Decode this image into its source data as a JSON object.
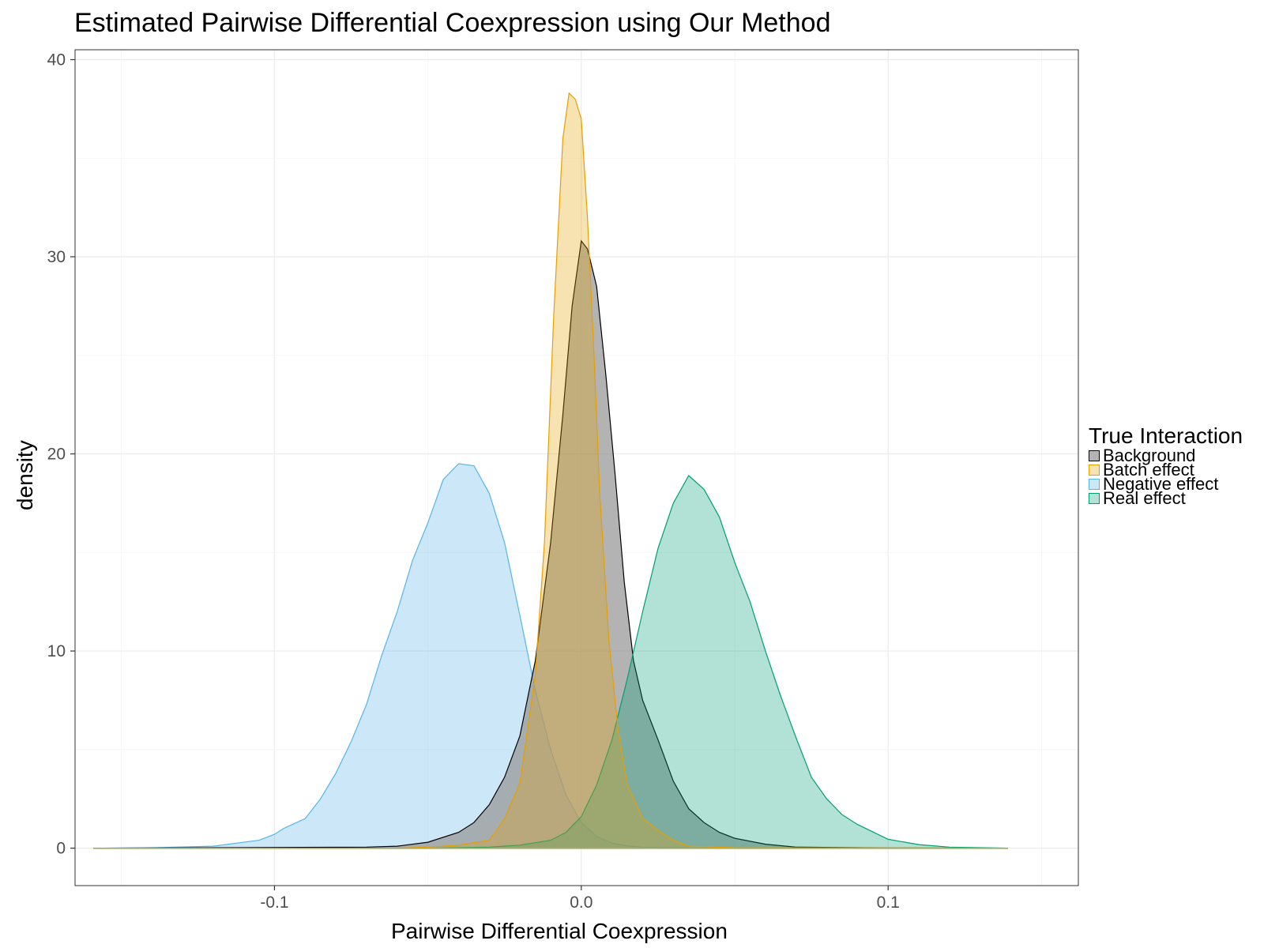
{
  "chart_data": {
    "type": "area",
    "title": "Estimated Pairwise Differential Coexpression using Our Method",
    "xlabel": "Pairwise Differential Coexpression",
    "ylabel": "density",
    "xlim": [
      -0.165,
      0.162
    ],
    "ylim": [
      -1.9,
      40.5
    ],
    "x_ticks": [
      -0.1,
      0.0,
      0.1
    ],
    "x_tick_labels": [
      "-0.1",
      "0.0",
      "0.1"
    ],
    "y_ticks": [
      0,
      10,
      20,
      30,
      40
    ],
    "y_tick_labels": [
      "0",
      "10",
      "20",
      "30",
      "40"
    ],
    "grid": true,
    "legend": {
      "title": "True Interaction",
      "placement": "right",
      "entries": [
        "Background",
        "Batch effect",
        "Negative effect",
        "Real effect"
      ]
    },
    "series": [
      {
        "name": "Negative effect",
        "fill": "#56B4E9",
        "stroke": "#56B4E9",
        "x": [
          -0.159,
          -0.14,
          -0.12,
          -0.105,
          -0.1,
          -0.097,
          -0.09,
          -0.085,
          -0.08,
          -0.075,
          -0.07,
          -0.065,
          -0.06,
          -0.055,
          -0.05,
          -0.045,
          -0.04,
          -0.035,
          -0.03,
          -0.025,
          -0.02,
          -0.015,
          -0.01,
          -0.005,
          0.0,
          0.005,
          0.01,
          0.015,
          0.02,
          0.03,
          0.04,
          0.06,
          0.08,
          0.1,
          0.12,
          0.139
        ],
        "y": [
          0,
          0.02,
          0.1,
          0.4,
          0.7,
          1.0,
          1.5,
          2.5,
          3.8,
          5.4,
          7.3,
          9.8,
          12.0,
          14.6,
          16.5,
          18.7,
          19.5,
          19.4,
          18.0,
          15.5,
          11.8,
          8.0,
          5.0,
          2.7,
          1.3,
          0.6,
          0.25,
          0.12,
          0.05,
          0.02,
          0.01,
          0,
          0,
          0,
          0,
          0
        ]
      },
      {
        "name": "Background",
        "fill": "#999999",
        "stroke": "#000000",
        "x": [
          -0.159,
          -0.07,
          -0.06,
          -0.05,
          -0.04,
          -0.035,
          -0.03,
          -0.025,
          -0.02,
          -0.015,
          -0.01,
          -0.006,
          -0.003,
          0.0,
          0.002,
          0.005,
          0.008,
          0.011,
          0.014,
          0.017,
          0.02,
          0.025,
          0.03,
          0.035,
          0.04,
          0.045,
          0.05,
          0.06,
          0.07,
          0.1,
          0.139
        ],
        "y": [
          0,
          0.05,
          0.1,
          0.3,
          0.8,
          1.3,
          2.2,
          3.6,
          5.7,
          9.5,
          15.5,
          22.0,
          27.5,
          30.8,
          30.4,
          28.5,
          24.0,
          19.0,
          13.5,
          9.5,
          7.5,
          5.5,
          3.4,
          2.0,
          1.3,
          0.8,
          0.5,
          0.2,
          0.05,
          0.01,
          0
        ]
      },
      {
        "name": "Real effect",
        "fill": "#009E73",
        "stroke": "#009E73",
        "x": [
          -0.159,
          -0.05,
          -0.03,
          -0.02,
          -0.01,
          -0.005,
          0.0,
          0.005,
          0.01,
          0.015,
          0.02,
          0.025,
          0.03,
          0.035,
          0.04,
          0.045,
          0.05,
          0.055,
          0.06,
          0.065,
          0.07,
          0.075,
          0.08,
          0.085,
          0.09,
          0.1,
          0.11,
          0.12,
          0.139
        ],
        "y": [
          0,
          0,
          0.05,
          0.15,
          0.4,
          0.8,
          1.6,
          3.2,
          5.5,
          8.6,
          12.0,
          15.2,
          17.5,
          18.9,
          18.2,
          16.8,
          14.5,
          12.5,
          10.0,
          7.7,
          5.6,
          3.6,
          2.5,
          1.7,
          1.2,
          0.45,
          0.18,
          0.05,
          0
        ]
      },
      {
        "name": "Batch effect",
        "fill": "#E69F00",
        "stroke": "#E69F00",
        "x": [
          -0.159,
          -0.06,
          -0.05,
          -0.045,
          -0.04,
          -0.03,
          -0.025,
          -0.02,
          -0.015,
          -0.012,
          -0.009,
          -0.006,
          -0.004,
          -0.002,
          0.0,
          0.002,
          0.004,
          0.006,
          0.009,
          0.012,
          0.015,
          0.02,
          0.025,
          0.03,
          0.035,
          0.05,
          0.139
        ],
        "y": [
          0,
          0,
          0.05,
          0.1,
          0.15,
          0.4,
          1.5,
          3.3,
          8.8,
          15.5,
          27.0,
          36.0,
          38.3,
          38.0,
          37.0,
          32.0,
          25.5,
          18.0,
          10.5,
          6.0,
          3.2,
          1.5,
          0.9,
          0.4,
          0.1,
          0.02,
          0
        ]
      }
    ]
  }
}
